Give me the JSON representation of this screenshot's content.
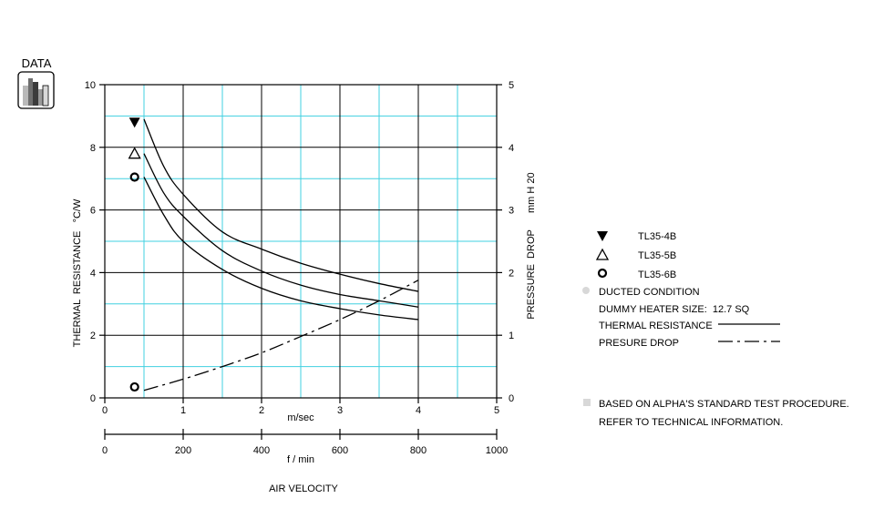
{
  "badge": {
    "label": "DATA"
  },
  "chart_data": {
    "type": "line",
    "xlabel_primary": "m/sec",
    "xlabel_secondary": "f / min",
    "xlabel_bottom": "AIR VELOCITY",
    "ylabel_left": "THERMAL  RESISTANCE   °C/W",
    "ylabel_right": "PRESSURE  DROP      mm H 20",
    "xlim": [
      0,
      5
    ],
    "ylim_left": [
      0,
      10
    ],
    "ylim_right": [
      0,
      5
    ],
    "xlim_secondary": [
      0,
      1000
    ],
    "x_ticks": [
      "0",
      "1",
      "2",
      "3",
      "4",
      "5"
    ],
    "y_ticks_left": [
      "0",
      "2",
      "4",
      "6",
      "8",
      "10"
    ],
    "y_ticks_right": [
      "0",
      "1",
      "2",
      "3",
      "4",
      "5"
    ],
    "x_ticks_secondary": [
      "0",
      "200",
      "400",
      "600",
      "800",
      "1000"
    ],
    "series": [
      {
        "name": "TL35-4B",
        "marker": "filled-triangle",
        "style": "solid",
        "x": [
          0.5,
          0.75,
          1.0,
          1.5,
          2.0,
          2.5,
          3.0,
          3.5,
          4.0
        ],
        "y": [
          8.9,
          7.4,
          6.5,
          5.3,
          4.75,
          4.3,
          3.95,
          3.65,
          3.4
        ]
      },
      {
        "name": "TL35-5B",
        "marker": "open-triangle",
        "style": "solid",
        "x": [
          0.5,
          0.75,
          1.0,
          1.5,
          2.0,
          2.5,
          3.0,
          3.5,
          4.0
        ],
        "y": [
          7.8,
          6.55,
          5.8,
          4.7,
          4.05,
          3.6,
          3.3,
          3.1,
          2.9
        ]
      },
      {
        "name": "TL35-6B",
        "marker": "open-circle",
        "style": "solid",
        "x": [
          0.5,
          0.75,
          1.0,
          1.5,
          2.0,
          2.5,
          3.0,
          3.5,
          4.0
        ],
        "y": [
          7.05,
          5.85,
          5.0,
          4.1,
          3.5,
          3.1,
          2.85,
          2.65,
          2.5
        ]
      },
      {
        "name": "PRESURE DROP",
        "axis": "right",
        "style": "dash-dot",
        "x": [
          0.5,
          1.0,
          1.5,
          2.0,
          2.5,
          3.0,
          3.5,
          4.0
        ],
        "y": [
          0.12,
          0.3,
          0.5,
          0.72,
          0.98,
          1.25,
          1.55,
          1.88
        ]
      }
    ],
    "markers": [
      {
        "name": "TL35-4B",
        "x": 0.38,
        "y": 8.8,
        "symbol": "filled-triangle"
      },
      {
        "name": "TL35-5B",
        "x": 0.38,
        "y": 7.8,
        "symbol": "open-triangle"
      },
      {
        "name": "TL35-6B",
        "x": 0.38,
        "y": 7.05,
        "symbol": "open-circle"
      },
      {
        "name": "TL35-6B",
        "x": 0.38,
        "y": 0.35,
        "symbol": "open-circle"
      }
    ]
  },
  "legend": {
    "items": [
      "TL35-4B",
      "TL35-5B",
      "TL35-6B"
    ],
    "ducted": "DUCTED CONDITION",
    "heater": "DUMMY HEATER SIZE:  12.7 SQ",
    "thermal": "THERMAL RESISTANCE",
    "pressure": "PRESURE DROP",
    "note1": "BASED ON ALPHA'S STANDARD TEST PROCEDURE.",
    "note2": "REFER TO TECHNICAL INFORMATION."
  },
  "colors": {
    "grid_major": "#000000",
    "grid_minor": "#40d0e0",
    "ink": "#000000"
  }
}
